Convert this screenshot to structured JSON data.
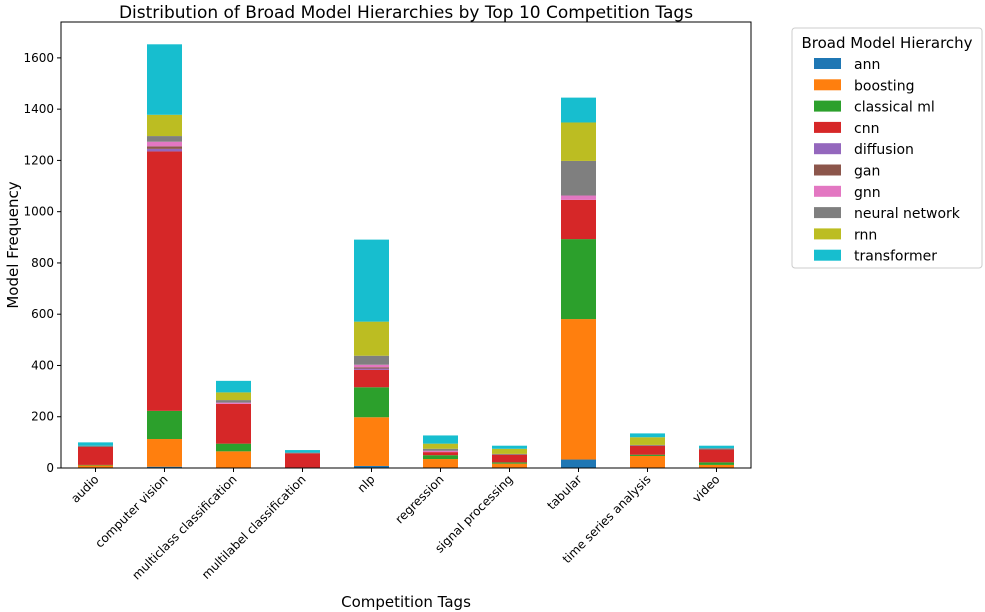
{
  "chart_data": {
    "type": "bar",
    "stacked": true,
    "title": "Distribution of Broad Model Hierarchies by Top 10 Competition Tags",
    "xlabel": "Competition Tags",
    "ylabel": "Model Frequency",
    "ylim": [
      0,
      1740
    ],
    "yticks": [
      0,
      200,
      400,
      600,
      800,
      1000,
      1200,
      1400,
      1600
    ],
    "grid": false,
    "legend_title": "Broad Model Hierarchy",
    "legend_placement": "outside-top-right",
    "categories": [
      "audio",
      "computer vision",
      "multiclass classification",
      "multilabel classification",
      "nlp",
      "regression",
      "signal processing",
      "tabular",
      "time series analysis",
      "video"
    ],
    "series": [
      {
        "name": "ann",
        "color": "#1f77b4",
        "values": [
          2,
          5,
          0,
          0,
          8,
          2,
          2,
          33,
          2,
          2
        ]
      },
      {
        "name": "boosting",
        "color": "#ff7f0e",
        "values": [
          8,
          108,
          65,
          0,
          190,
          33,
          15,
          548,
          45,
          10
        ]
      },
      {
        "name": "classical ml",
        "color": "#2ca02c",
        "values": [
          2,
          110,
          30,
          2,
          117,
          15,
          5,
          312,
          5,
          10
        ]
      },
      {
        "name": "cnn",
        "color": "#d62728",
        "values": [
          70,
          1012,
          155,
          55,
          68,
          12,
          30,
          153,
          35,
          50
        ]
      },
      {
        "name": "diffusion",
        "color": "#9467bd",
        "values": [
          0,
          10,
          0,
          0,
          5,
          0,
          0,
          0,
          0,
          0
        ]
      },
      {
        "name": "gan",
        "color": "#8c564b",
        "values": [
          0,
          10,
          0,
          0,
          5,
          0,
          0,
          0,
          0,
          0
        ]
      },
      {
        "name": "gnn",
        "color": "#e377c2",
        "values": [
          0,
          18,
          5,
          0,
          10,
          5,
          0,
          17,
          0,
          0
        ]
      },
      {
        "name": "neural network",
        "color": "#7f7f7f",
        "values": [
          5,
          22,
          10,
          3,
          35,
          8,
          3,
          135,
          3,
          5
        ]
      },
      {
        "name": "rnn",
        "color": "#bcbd22",
        "values": [
          0,
          83,
          30,
          0,
          133,
          20,
          20,
          150,
          30,
          0
        ]
      },
      {
        "name": "transformer",
        "color": "#17becf",
        "values": [
          13,
          275,
          45,
          10,
          320,
          32,
          12,
          97,
          15,
          10
        ]
      }
    ]
  }
}
